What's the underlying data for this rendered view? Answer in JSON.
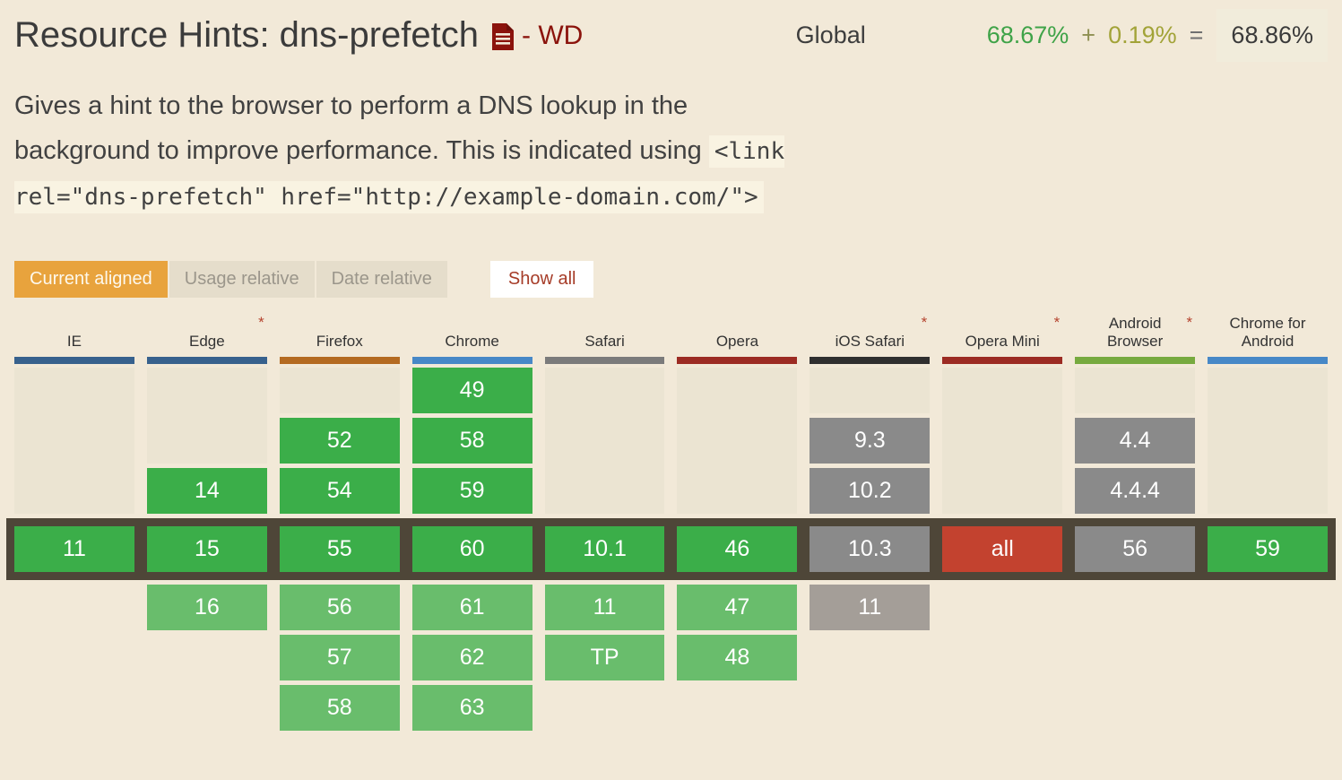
{
  "colors": {
    "bg": "#F2E9D8",
    "cell-empty": "#EBE4D2",
    "green": "#3BAE49",
    "green-future": "#69BD6C",
    "gray": "#8A8A8A",
    "gray-future": "#A49E98",
    "red": "#C3422F",
    "band": "#4E4638",
    "orange": "#E8A33D",
    "btn-inactive-bg": "#E5DDCB",
    "btn-inactive-text": "#9B968B",
    "show-all-text": "#A63C28",
    "link-red": "#8B130C",
    "code-bg": "#F9F3E2",
    "total-box-bg": "#F1ECDB",
    "stat-green": "#3FA348",
    "stat-olive": "#A2A338"
  },
  "header": {
    "title": "Resource Hints: dns-prefetch",
    "spec_status": "- WD",
    "usage": {
      "label": "Global",
      "full": "68.67%",
      "plus": "+",
      "partial": "0.19%",
      "equals": "=",
      "total": "68.86%"
    }
  },
  "description": {
    "text": "Gives a hint to the browser to perform a DNS lookup in the background to improve performance. This is indicated using ",
    "code": "<link rel=\"dns-prefetch\" href=\"http://example-domain.com/\">"
  },
  "controls": {
    "tabs": [
      {
        "label": "Current aligned",
        "active": true
      },
      {
        "label": "Usage relative",
        "active": false
      },
      {
        "label": "Date relative",
        "active": false
      }
    ],
    "show_all_label": "Show all"
  },
  "table": {
    "note_marker": "*",
    "eras": [
      "past",
      "past",
      "past",
      "current",
      "future",
      "future",
      "future"
    ],
    "browsers": [
      {
        "name": "IE",
        "asterisk": false,
        "bar_color": "#37618D",
        "cells": [
          null,
          null,
          null,
          {
            "label": "11",
            "support": "y"
          },
          null,
          null,
          null
        ]
      },
      {
        "name": "Edge",
        "asterisk": true,
        "bar_color": "#37618D",
        "cells": [
          null,
          null,
          {
            "label": "14",
            "support": "y"
          },
          {
            "label": "15",
            "support": "y"
          },
          {
            "label": "16",
            "support": "yf"
          },
          null,
          null
        ]
      },
      {
        "name": "Firefox",
        "asterisk": false,
        "bar_color": "#B46A21",
        "cells": [
          null,
          {
            "label": "52",
            "support": "y"
          },
          {
            "label": "54",
            "support": "y"
          },
          {
            "label": "55",
            "support": "y"
          },
          {
            "label": "56",
            "support": "yf"
          },
          {
            "label": "57",
            "support": "yf"
          },
          {
            "label": "58",
            "support": "yf"
          }
        ]
      },
      {
        "name": "Chrome",
        "asterisk": false,
        "bar_color": "#4788C7",
        "cells": [
          {
            "label": "49",
            "support": "y"
          },
          {
            "label": "58",
            "support": "y"
          },
          {
            "label": "59",
            "support": "y"
          },
          {
            "label": "60",
            "support": "y"
          },
          {
            "label": "61",
            "support": "yf"
          },
          {
            "label": "62",
            "support": "yf"
          },
          {
            "label": "63",
            "support": "yf"
          }
        ]
      },
      {
        "name": "Safari",
        "asterisk": false,
        "bar_color": "#7B7B7B",
        "cells": [
          null,
          null,
          null,
          {
            "label": "10.1",
            "support": "y"
          },
          {
            "label": "11",
            "support": "yf"
          },
          {
            "label": "TP",
            "support": "yf"
          },
          null
        ]
      },
      {
        "name": "Opera",
        "asterisk": false,
        "bar_color": "#9C2B23",
        "cells": [
          null,
          null,
          null,
          {
            "label": "46",
            "support": "y"
          },
          {
            "label": "47",
            "support": "yf"
          },
          {
            "label": "48",
            "support": "yf"
          },
          null
        ]
      },
      {
        "name": "iOS Safari",
        "asterisk": true,
        "bar_color": "#2F2F2F",
        "cells": [
          null,
          {
            "label": "9.3",
            "support": "a"
          },
          {
            "label": "10.2",
            "support": "a"
          },
          {
            "label": "10.3",
            "support": "a"
          },
          {
            "label": "11",
            "support": "af"
          },
          null,
          null
        ]
      },
      {
        "name": "Opera Mini",
        "asterisk": true,
        "bar_color": "#9C2B23",
        "cells": [
          null,
          null,
          null,
          {
            "label": "all",
            "support": "n"
          },
          null,
          null,
          null
        ]
      },
      {
        "name": "Android Browser",
        "asterisk": true,
        "bar_color": "#77AA3F",
        "cells": [
          null,
          {
            "label": "4.4",
            "support": "a"
          },
          {
            "label": "4.4.4",
            "support": "a"
          },
          {
            "label": "56",
            "support": "a"
          },
          null,
          null,
          null
        ]
      },
      {
        "name": "Chrome for Android",
        "asterisk": false,
        "bar_color": "#4788C7",
        "cells": [
          null,
          null,
          null,
          {
            "label": "59",
            "support": "y"
          },
          null,
          null,
          null
        ]
      }
    ]
  }
}
